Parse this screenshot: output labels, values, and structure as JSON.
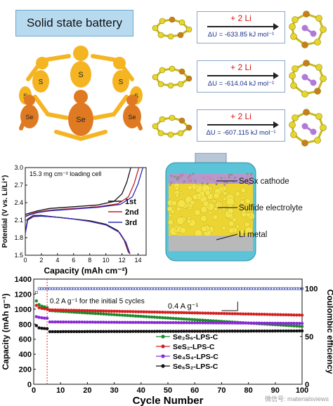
{
  "title": "Solid state battery",
  "figure": {
    "people_labels": [
      "S",
      "S",
      "S",
      "S",
      "Se",
      "Se",
      "S",
      "Se"
    ],
    "reactions": [
      {
        "plus": "+ 2 Li",
        "delta_u": "ΔU = -633.85 kJ mol⁻¹"
      },
      {
        "plus": "+ 2 Li",
        "delta_u": "ΔU = -614.04 kJ mol⁻¹"
      },
      {
        "plus": "+ 2 Li",
        "delta_u": "ΔU = -607.115 kJ mol⁻¹"
      }
    ],
    "cell_labels": {
      "cathode": "SeSx cathode",
      "electrolyte": "Sulfide electrolyte",
      "anode": "Li metal"
    },
    "watermark": "微信号: materialsviews"
  },
  "colors": {
    "s_atom": "#e7d62a",
    "se_atom": "#c97e1c",
    "li_atom": "#b07ad8",
    "people_yellow": "#f5b422",
    "people_orange": "#e07a22"
  },
  "chart_data": [
    {
      "type": "line",
      "annotation": "15.3 mg cm⁻² loading cell",
      "xlabel": "Capacity (mAh cm⁻²)",
      "ylabel": "Potential (V vs. Li/Li⁺)",
      "xlim": [
        0,
        15
      ],
      "ylim": [
        1.5,
        3.0
      ],
      "xticks": [
        0,
        2,
        4,
        6,
        8,
        10,
        12,
        14
      ],
      "yticks": [
        1.5,
        1.8,
        2.1,
        2.4,
        2.7,
        3.0
      ],
      "legend_position": "right",
      "series": [
        {
          "name": "1st",
          "color": "#111111",
          "discharge": {
            "x": [
              0,
              0.3,
              1,
              2,
              4,
              6,
              8,
              10,
              11.5,
              12.3,
              12.8
            ],
            "y": [
              1.9,
              2.12,
              2.18,
              2.18,
              2.15,
              2.12,
              2.09,
              2.03,
              1.92,
              1.75,
              1.55
            ]
          },
          "charge": {
            "x": [
              0,
              0.5,
              1.5,
              3,
              6,
              9,
              11,
              12,
              12.6,
              13.1
            ],
            "y": [
              2.2,
              2.22,
              2.26,
              2.3,
              2.33,
              2.36,
              2.42,
              2.55,
              2.75,
              3.0
            ]
          }
        },
        {
          "name": "2nd",
          "color": "#c0202a",
          "discharge": {
            "x": [
              0,
              0.3,
              1,
              2,
              4,
              6,
              8,
              10,
              11.6,
              12.4,
              12.9
            ],
            "y": [
              1.88,
              2.1,
              2.17,
              2.17,
              2.15,
              2.12,
              2.08,
              2.02,
              1.9,
              1.73,
              1.53
            ]
          },
          "charge": {
            "x": [
              0,
              0.5,
              1.5,
              3,
              6,
              9,
              11.5,
              12.8,
              13.5,
              14.1
            ],
            "y": [
              2.17,
              2.2,
              2.24,
              2.27,
              2.3,
              2.33,
              2.38,
              2.5,
              2.72,
              3.0
            ]
          }
        },
        {
          "name": "3rd",
          "color": "#2a2ab8",
          "discharge": {
            "x": [
              0,
              0.3,
              1,
              2,
              4,
              6,
              8,
              10,
              11.7,
              12.5,
              13.0
            ],
            "y": [
              1.87,
              2.1,
              2.16,
              2.17,
              2.15,
              2.12,
              2.08,
              2.02,
              1.89,
              1.72,
              1.52
            ]
          },
          "charge": {
            "x": [
              0,
              0.5,
              1.5,
              3,
              6,
              9,
              11.8,
              13.3,
              14,
              14.6
            ],
            "y": [
              2.16,
              2.19,
              2.23,
              2.26,
              2.29,
              2.32,
              2.37,
              2.5,
              2.72,
              3.0
            ]
          }
        }
      ]
    },
    {
      "type": "scatter",
      "xlabel": "Cycle Number",
      "ylabel": "Capacity (mAh g⁻¹)",
      "y2label": "Coulombic efficiency",
      "xlim": [
        0,
        100
      ],
      "ylim": [
        0,
        1400
      ],
      "y2lim": [
        0,
        110
      ],
      "xticks": [
        0,
        10,
        20,
        30,
        40,
        50,
        60,
        70,
        80,
        90,
        100
      ],
      "yticks": [
        0,
        200,
        400,
        600,
        800,
        1000,
        1200,
        1400
      ],
      "y2ticks": [
        0,
        50,
        100
      ],
      "annotations": [
        "0.2 A g⁻¹ for the initial 5 cycles",
        "0.4 A g⁻¹"
      ],
      "legend_position": "bottom-center",
      "series": [
        {
          "name": "Se₂S₆-LPS-C",
          "color": "#1e8a2a",
          "start": 1020,
          "initial": [
            1110,
            1060,
            1040,
            1030,
            1020
          ],
          "after_drop": 980,
          "end": 770
        },
        {
          "name": "SeS₂-LPS-C",
          "color": "#d42020",
          "start": 1000,
          "initial": [
            1050,
            1020,
            1010,
            1005,
            1000
          ],
          "after_drop": 990,
          "end": 920
        },
        {
          "name": "Se₄S₄-LPS-C",
          "color": "#8a2ad4",
          "start": 880,
          "initial": [
            900,
            890,
            885,
            880,
            878
          ],
          "after_drop": 830,
          "end": 810
        },
        {
          "name": "Se₆S₂-LPS-C",
          "color": "#111111",
          "start": 740,
          "initial": [
            780,
            750,
            745,
            742,
            740
          ],
          "after_drop": 700,
          "end": 710
        }
      ],
      "coulombic_efficiency": {
        "value": 100,
        "color": "#3040a8"
      }
    }
  ]
}
